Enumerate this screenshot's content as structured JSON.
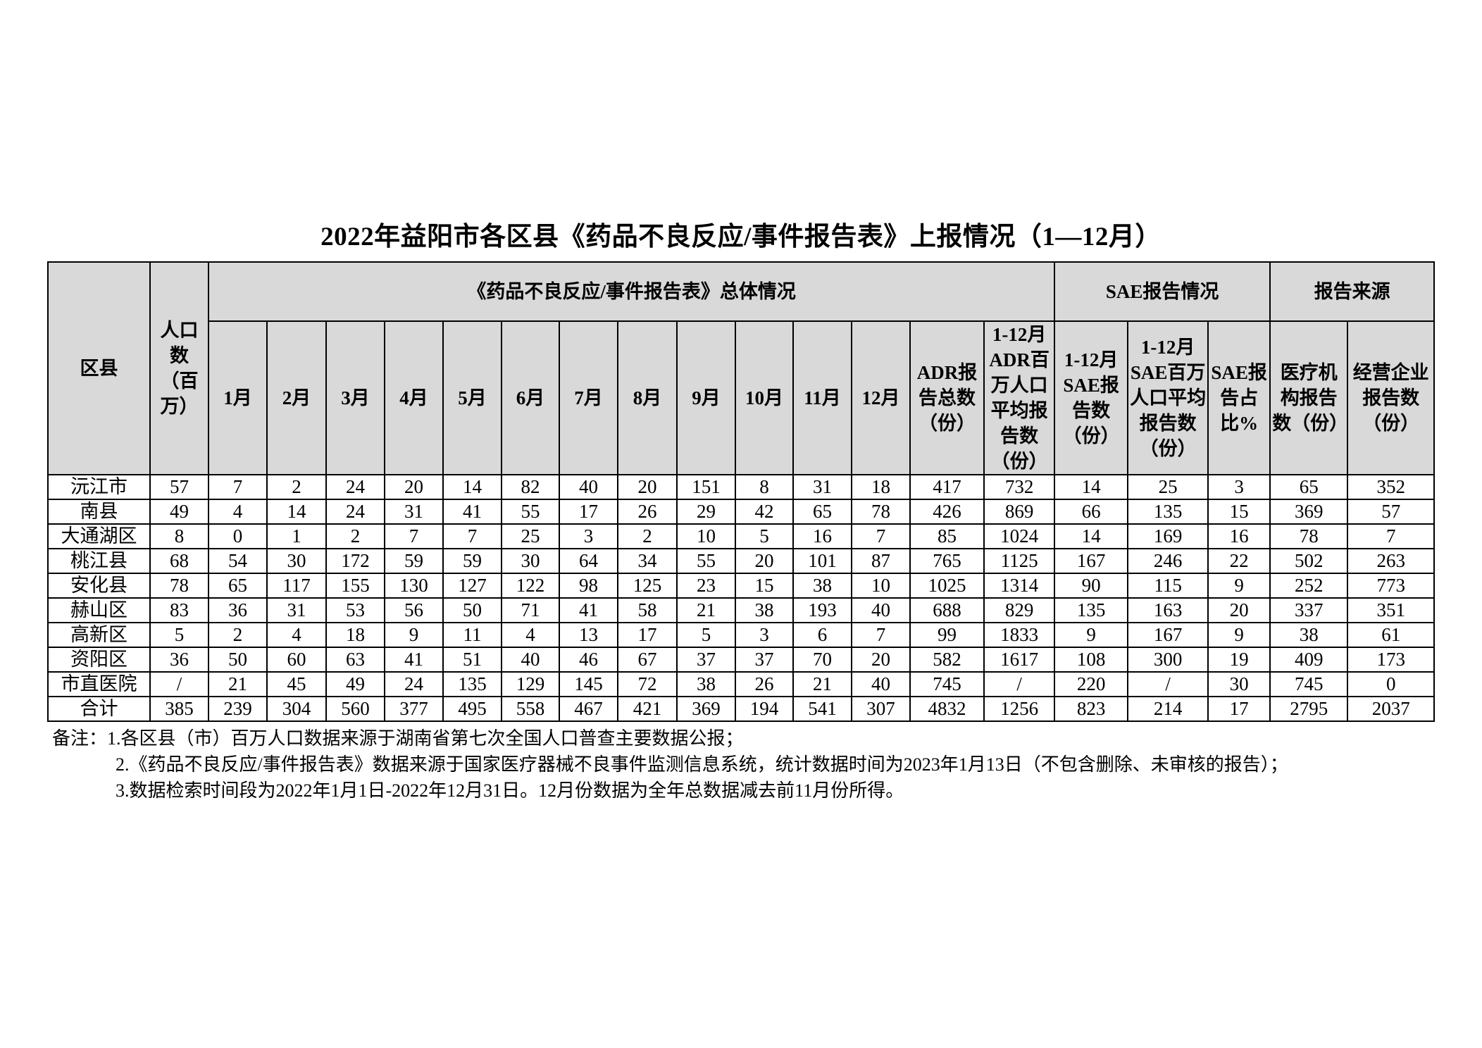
{
  "title": "2022年益阳市各区县《药品不良反应/事件报告表》上报情况（1—12月）",
  "header": {
    "district": "区县",
    "population": "人口数（百万）",
    "group_overall": "《药品不良反应/事件报告表》总体情况",
    "group_sae": "SAE报告情况",
    "group_source": "报告来源",
    "months": [
      "1月",
      "2月",
      "3月",
      "4月",
      "5月",
      "6月",
      "7月",
      "8月",
      "9月",
      "10月",
      "11月",
      "12月"
    ],
    "adr_total": "ADR报告总数（份）",
    "adr_per_million": "1-12月ADR百万人口平均报告数（份）",
    "sae_count": "1-12月SAE报告数（份）",
    "sae_per_million": "1-12月SAE百万人口平均报告数（份）",
    "sae_ratio": "SAE报告占比%",
    "medical_reports": "医疗机构报告数（份）",
    "enterprise_reports": "经营企业报告数（份）"
  },
  "rows": [
    {
      "name": "沅江市",
      "cells": [
        "57",
        "7",
        "2",
        "24",
        "20",
        "14",
        "82",
        "40",
        "20",
        "151",
        "8",
        "31",
        "18",
        "417",
        "732",
        "14",
        "25",
        "3",
        "65",
        "352"
      ]
    },
    {
      "name": "南县",
      "cells": [
        "49",
        "4",
        "14",
        "24",
        "31",
        "41",
        "55",
        "17",
        "26",
        "29",
        "42",
        "65",
        "78",
        "426",
        "869",
        "66",
        "135",
        "15",
        "369",
        "57"
      ]
    },
    {
      "name": "大通湖区",
      "cells": [
        "8",
        "0",
        "1",
        "2",
        "7",
        "7",
        "25",
        "3",
        "2",
        "10",
        "5",
        "16",
        "7",
        "85",
        "1024",
        "14",
        "169",
        "16",
        "78",
        "7"
      ]
    },
    {
      "name": "桃江县",
      "cells": [
        "68",
        "54",
        "30",
        "172",
        "59",
        "59",
        "30",
        "64",
        "34",
        "55",
        "20",
        "101",
        "87",
        "765",
        "1125",
        "167",
        "246",
        "22",
        "502",
        "263"
      ]
    },
    {
      "name": "安化县",
      "cells": [
        "78",
        "65",
        "117",
        "155",
        "130",
        "127",
        "122",
        "98",
        "125",
        "23",
        "15",
        "38",
        "10",
        "1025",
        "1314",
        "90",
        "115",
        "9",
        "252",
        "773"
      ]
    },
    {
      "name": "赫山区",
      "cells": [
        "83",
        "36",
        "31",
        "53",
        "56",
        "50",
        "71",
        "41",
        "58",
        "21",
        "38",
        "193",
        "40",
        "688",
        "829",
        "135",
        "163",
        "20",
        "337",
        "351"
      ]
    },
    {
      "name": "高新区",
      "cells": [
        "5",
        "2",
        "4",
        "18",
        "9",
        "11",
        "4",
        "13",
        "17",
        "5",
        "3",
        "6",
        "7",
        "99",
        "1833",
        "9",
        "167",
        "9",
        "38",
        "61"
      ]
    },
    {
      "name": "资阳区",
      "cells": [
        "36",
        "50",
        "60",
        "63",
        "41",
        "51",
        "40",
        "46",
        "67",
        "37",
        "37",
        "70",
        "20",
        "582",
        "1617",
        "108",
        "300",
        "19",
        "409",
        "173"
      ]
    },
    {
      "name": "市直医院",
      "cells": [
        "/",
        "21",
        "45",
        "49",
        "24",
        "135",
        "129",
        "145",
        "72",
        "38",
        "26",
        "21",
        "40",
        "745",
        "/",
        "220",
        "/",
        "30",
        "745",
        "0"
      ]
    },
    {
      "name": "合计",
      "cells": [
        "385",
        "239",
        "304",
        "560",
        "377",
        "495",
        "558",
        "467",
        "421",
        "369",
        "194",
        "541",
        "307",
        "4832",
        "1256",
        "823",
        "214",
        "17",
        "2795",
        "2037"
      ]
    }
  ],
  "notes": [
    "备注：1.各区县（市）百万人口数据来源于湖南省第七次全国人口普查主要数据公报；",
    "2.《药品不良反应/事件报告表》数据来源于国家医疗器械不良事件监测信息系统，统计数据时间为2023年1月13日（不包含删除、未审核的报告）；",
    "3.数据检索时间段为2022年1月1日-2022年12月31日。12月份数据为全年总数据减去前11月份所得。"
  ]
}
